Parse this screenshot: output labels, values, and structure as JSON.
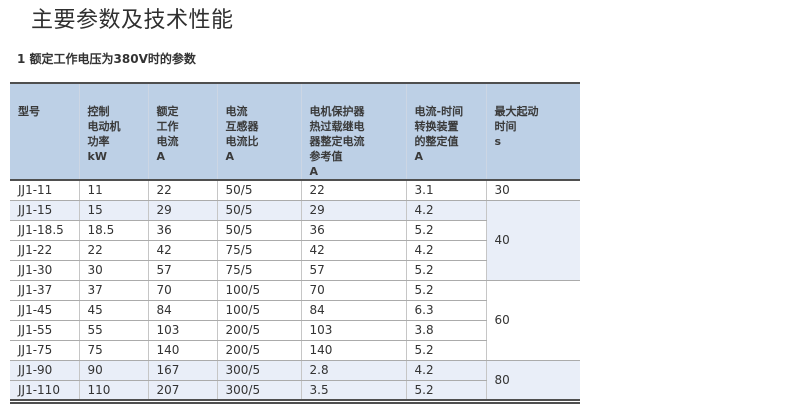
{
  "page": {
    "title": "主要参数及技术性能",
    "subtitle": "1 额定工作电压为380V时的参数"
  },
  "colors": {
    "header-bg": "#bdd0e6",
    "stripe-bg": "#e9eef8",
    "rule-dark": "#4f4f4f",
    "grid-h": "#ababab",
    "grid-v": "#c6c6c6",
    "grid-v-header": "#ccd6e4",
    "text": "#333333",
    "title-text": "#2f2f2f"
  },
  "table": {
    "columns": [
      {
        "id": "model",
        "label_lines": [
          "型号"
        ]
      },
      {
        "id": "power_kw",
        "label_lines": [
          "控制",
          "电动机",
          "功率",
          "kW"
        ]
      },
      {
        "id": "rated_current_a",
        "label_lines": [
          "额定",
          "工作",
          "电流",
          "A"
        ]
      },
      {
        "id": "ct_ratio",
        "label_lines": [
          "电流",
          "互感器",
          "电流比",
          "A"
        ]
      },
      {
        "id": "protector_ref_a",
        "label_lines": [
          "电机保护器",
          "热过载继电",
          "器整定电流",
          "参考值",
          "A"
        ]
      },
      {
        "id": "time_device_set_a",
        "label_lines": [
          "电流-时间",
          "转换装置",
          "的整定值",
          "A"
        ]
      },
      {
        "id": "max_start_time_s",
        "label_lines": [
          "最大起动",
          "时间",
          "s"
        ]
      }
    ],
    "rows": [
      {
        "model": "JJ1-11",
        "power_kw": "11",
        "rated_current_a": "22",
        "ct_ratio": "50/5",
        "protector_ref_a": "22",
        "time_device_set_a": "3.1",
        "shaded": false
      },
      {
        "model": "JJ1-15",
        "power_kw": "15",
        "rated_current_a": "29",
        "ct_ratio": "50/5",
        "protector_ref_a": "29",
        "time_device_set_a": "4.2",
        "shaded": true
      },
      {
        "model": "JJ1-18.5",
        "power_kw": "18.5",
        "rated_current_a": "36",
        "ct_ratio": "50/5",
        "protector_ref_a": "36",
        "time_device_set_a": "5.2",
        "shaded": false
      },
      {
        "model": "JJ1-22",
        "power_kw": "22",
        "rated_current_a": "42",
        "ct_ratio": "75/5",
        "protector_ref_a": "42",
        "time_device_set_a": "4.2",
        "shaded": false
      },
      {
        "model": "JJ1-30",
        "power_kw": "30",
        "rated_current_a": "57",
        "ct_ratio": "75/5",
        "protector_ref_a": "57",
        "time_device_set_a": "5.2",
        "shaded": false
      },
      {
        "model": "JJ1-37",
        "power_kw": "37",
        "rated_current_a": "70",
        "ct_ratio": "100/5",
        "protector_ref_a": "70",
        "time_device_set_a": "5.2",
        "shaded": false
      },
      {
        "model": "JJ1-45",
        "power_kw": "45",
        "rated_current_a": "84",
        "ct_ratio": "100/5",
        "protector_ref_a": "84",
        "time_device_set_a": "6.3",
        "shaded": false
      },
      {
        "model": "JJ1-55",
        "power_kw": "55",
        "rated_current_a": "103",
        "ct_ratio": "200/5",
        "protector_ref_a": "103",
        "time_device_set_a": "3.8",
        "shaded": false
      },
      {
        "model": "JJ1-75",
        "power_kw": "75",
        "rated_current_a": "140",
        "ct_ratio": "200/5",
        "protector_ref_a": "140",
        "time_device_set_a": "5.2",
        "shaded": false
      },
      {
        "model": "JJ1-90",
        "power_kw": "90",
        "rated_current_a": "167",
        "ct_ratio": "300/5",
        "protector_ref_a": "2.8",
        "time_device_set_a": "4.2",
        "shaded": true
      },
      {
        "model": "JJ1-110",
        "power_kw": "110",
        "rated_current_a": "207",
        "ct_ratio": "300/5",
        "protector_ref_a": "3.5",
        "time_device_set_a": "5.2",
        "shaded": true
      }
    ],
    "start_time_groups": [
      {
        "value": "30",
        "row_start": 0,
        "row_span": 1,
        "shaded": false
      },
      {
        "value": "40",
        "row_start": 1,
        "row_span": 4,
        "shaded": true
      },
      {
        "value": "60",
        "row_start": 5,
        "row_span": 4,
        "shaded": false
      },
      {
        "value": "80",
        "row_start": 9,
        "row_span": 2,
        "shaded": true
      }
    ]
  }
}
